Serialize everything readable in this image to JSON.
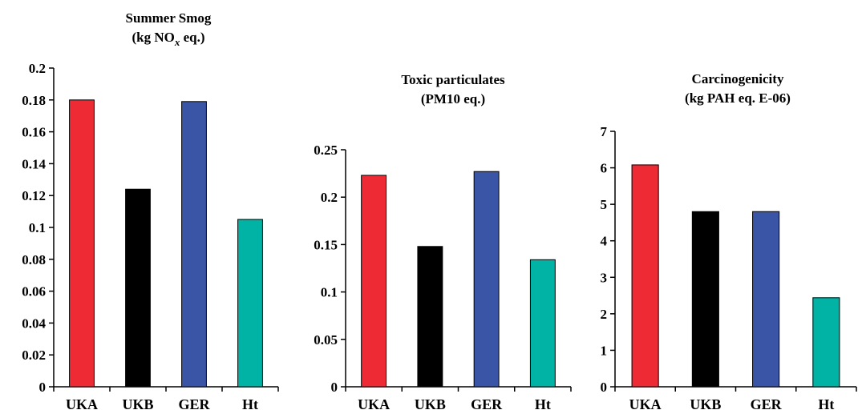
{
  "chart_data": [
    {
      "type": "bar",
      "title": "Summer Smog",
      "subtitle": {
        "prefix": "(kg NO",
        "sub": "x",
        "suffix": " eq.)"
      },
      "categories": [
        "UKA",
        "UKB",
        "GER",
        "Ht"
      ],
      "values": [
        0.18,
        0.124,
        0.179,
        0.105
      ],
      "colors": [
        "#ee2b35",
        "#000000",
        "#3a55a6",
        "#00b3a4"
      ],
      "ylim": [
        0,
        0.2
      ],
      "yticks": [
        0,
        0.02,
        0.04,
        0.06,
        0.08,
        0.1,
        0.12,
        0.14,
        0.16,
        0.18,
        0.2
      ],
      "ytick_labels": [
        "0",
        "0.02",
        "0.04",
        "0.06",
        "0.08",
        "0.1",
        "0.12",
        "0.14",
        "0.16",
        "0.18",
        "0.2"
      ],
      "grid": false
    },
    {
      "type": "bar",
      "title": "Toxic particulates",
      "subtitle": {
        "prefix": "(PM10 eq.)",
        "sub": "",
        "suffix": ""
      },
      "categories": [
        "UKA",
        "UKB",
        "GER",
        "Ht"
      ],
      "values": [
        0.223,
        0.148,
        0.227,
        0.134
      ],
      "colors": [
        "#ee2b35",
        "#000000",
        "#3a55a6",
        "#00b3a4"
      ],
      "ylim": [
        0,
        0.25
      ],
      "yticks": [
        0,
        0.05,
        0.1,
        0.15,
        0.2,
        0.25
      ],
      "ytick_labels": [
        "0",
        "0.05",
        "0.1",
        "0.15",
        "0.2",
        "0.25"
      ],
      "grid": false
    },
    {
      "type": "bar",
      "title": "Carcinogenicity",
      "subtitle": {
        "prefix": "(kg PAH eq. E-06)",
        "sub": "",
        "suffix": ""
      },
      "categories": [
        "UKA",
        "UKB",
        "GER",
        "Ht"
      ],
      "values": [
        6.08,
        4.8,
        4.8,
        2.44
      ],
      "colors": [
        "#ee2b35",
        "#000000",
        "#3a55a6",
        "#00b3a4"
      ],
      "ylim": [
        0,
        7
      ],
      "yticks": [
        0,
        1,
        2,
        3,
        4,
        5,
        6,
        7
      ],
      "ytick_labels": [
        "0",
        "1",
        "2",
        "3",
        "4",
        "5",
        "6",
        "7"
      ],
      "grid": false
    }
  ]
}
